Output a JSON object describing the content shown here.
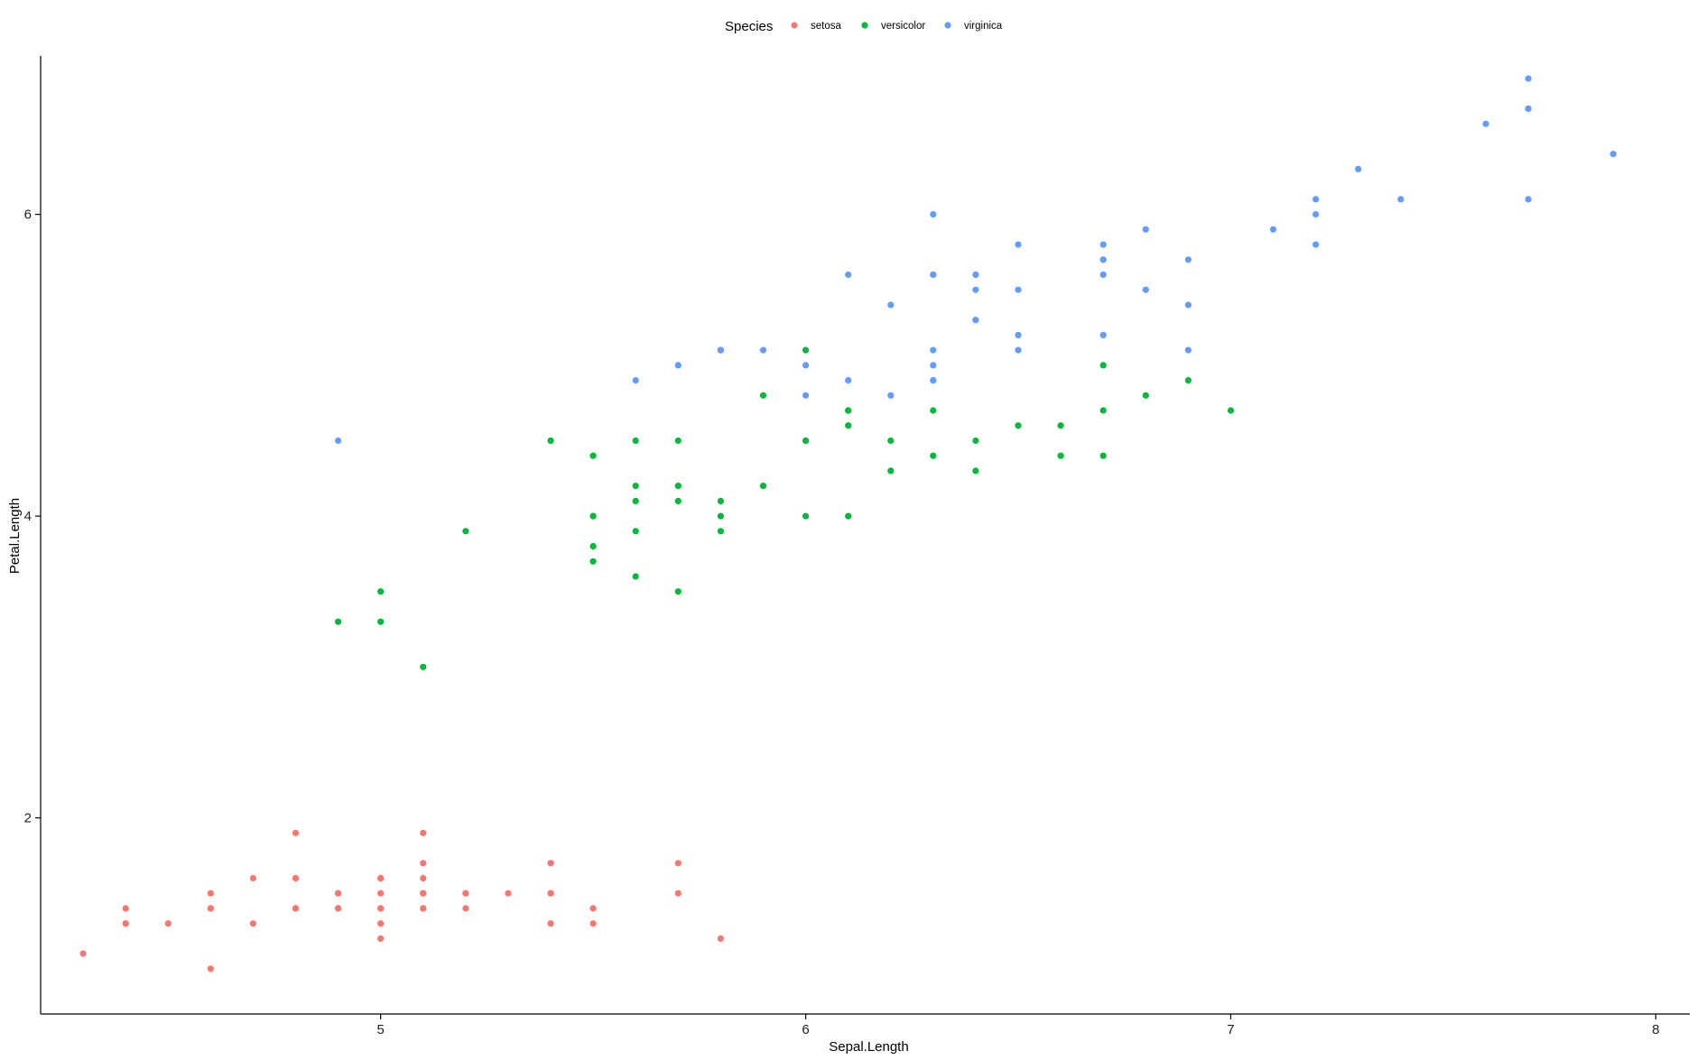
{
  "chart_data": {
    "type": "scatter",
    "xlabel": "Sepal.Length",
    "ylabel": "Petal.Length",
    "xlim": [
      4.2,
      8.08
    ],
    "ylim": [
      0.7,
      7.05
    ],
    "xticks": [
      5,
      6,
      7,
      8
    ],
    "yticks": [
      2,
      4,
      6
    ],
    "grid": false,
    "legend": {
      "title": "Species",
      "position": "top",
      "entries": [
        "setosa",
        "versicolor",
        "virginica"
      ]
    },
    "series": [
      {
        "name": "setosa",
        "color": "#F8766D",
        "points": [
          [
            5.1,
            1.4
          ],
          [
            4.9,
            1.4
          ],
          [
            4.7,
            1.3
          ],
          [
            4.6,
            1.5
          ],
          [
            5.0,
            1.4
          ],
          [
            5.4,
            1.7
          ],
          [
            4.6,
            1.4
          ],
          [
            5.0,
            1.5
          ],
          [
            4.4,
            1.4
          ],
          [
            4.9,
            1.5
          ],
          [
            5.4,
            1.5
          ],
          [
            4.8,
            1.6
          ],
          [
            4.8,
            1.4
          ],
          [
            4.3,
            1.1
          ],
          [
            5.8,
            1.2
          ],
          [
            5.7,
            1.5
          ],
          [
            5.4,
            1.3
          ],
          [
            5.1,
            1.4
          ],
          [
            5.7,
            1.7
          ],
          [
            5.1,
            1.5
          ],
          [
            5.4,
            1.7
          ],
          [
            5.1,
            1.5
          ],
          [
            4.6,
            1.0
          ],
          [
            5.1,
            1.7
          ],
          [
            4.8,
            1.9
          ],
          [
            5.0,
            1.6
          ],
          [
            5.0,
            1.6
          ],
          [
            5.2,
            1.5
          ],
          [
            5.2,
            1.4
          ],
          [
            4.7,
            1.6
          ],
          [
            4.8,
            1.6
          ],
          [
            5.4,
            1.5
          ],
          [
            5.2,
            1.5
          ],
          [
            5.5,
            1.4
          ],
          [
            4.9,
            1.5
          ],
          [
            5.0,
            1.2
          ],
          [
            5.5,
            1.3
          ],
          [
            4.9,
            1.4
          ],
          [
            4.4,
            1.3
          ],
          [
            5.1,
            1.5
          ],
          [
            5.0,
            1.3
          ],
          [
            4.5,
            1.3
          ],
          [
            4.4,
            1.3
          ],
          [
            5.0,
            1.6
          ],
          [
            5.1,
            1.9
          ],
          [
            4.8,
            1.4
          ],
          [
            5.1,
            1.6
          ],
          [
            4.6,
            1.4
          ],
          [
            5.3,
            1.5
          ],
          [
            5.0,
            1.4
          ]
        ]
      },
      {
        "name": "versicolor",
        "color": "#00BA38",
        "points": [
          [
            7.0,
            4.7
          ],
          [
            6.4,
            4.5
          ],
          [
            6.9,
            4.9
          ],
          [
            5.5,
            4.0
          ],
          [
            6.5,
            4.6
          ],
          [
            5.7,
            4.5
          ],
          [
            6.3,
            4.7
          ],
          [
            4.9,
            3.3
          ],
          [
            6.6,
            4.6
          ],
          [
            5.2,
            3.9
          ],
          [
            5.0,
            3.5
          ],
          [
            5.9,
            4.2
          ],
          [
            6.0,
            4.0
          ],
          [
            6.1,
            4.7
          ],
          [
            5.6,
            3.6
          ],
          [
            6.7,
            4.4
          ],
          [
            5.6,
            4.5
          ],
          [
            5.8,
            4.1
          ],
          [
            6.2,
            4.5
          ],
          [
            5.6,
            3.9
          ],
          [
            5.9,
            4.8
          ],
          [
            6.1,
            4.0
          ],
          [
            6.3,
            4.9
          ],
          [
            6.1,
            4.7
          ],
          [
            6.4,
            4.3
          ],
          [
            6.6,
            4.4
          ],
          [
            6.8,
            4.8
          ],
          [
            6.7,
            5.0
          ],
          [
            6.0,
            4.5
          ],
          [
            5.7,
            3.5
          ],
          [
            5.5,
            3.8
          ],
          [
            5.5,
            3.7
          ],
          [
            5.8,
            3.9
          ],
          [
            6.0,
            5.1
          ],
          [
            5.4,
            4.5
          ],
          [
            6.0,
            4.5
          ],
          [
            6.7,
            4.7
          ],
          [
            6.3,
            4.4
          ],
          [
            5.6,
            4.1
          ],
          [
            5.5,
            4.0
          ],
          [
            5.5,
            4.4
          ],
          [
            6.1,
            4.6
          ],
          [
            5.8,
            4.0
          ],
          [
            5.0,
            3.3
          ],
          [
            5.6,
            4.2
          ],
          [
            5.7,
            4.2
          ],
          [
            5.7,
            4.2
          ],
          [
            6.2,
            4.3
          ],
          [
            5.1,
            3.0
          ],
          [
            5.7,
            4.1
          ]
        ]
      },
      {
        "name": "virginica",
        "color": "#619CFF",
        "points": [
          [
            6.3,
            6.0
          ],
          [
            5.8,
            5.1
          ],
          [
            7.1,
            5.9
          ],
          [
            6.3,
            5.6
          ],
          [
            6.5,
            5.8
          ],
          [
            7.6,
            6.6
          ],
          [
            4.9,
            4.5
          ],
          [
            7.3,
            6.3
          ],
          [
            6.7,
            5.8
          ],
          [
            7.2,
            6.1
          ],
          [
            6.5,
            5.1
          ],
          [
            6.4,
            5.3
          ],
          [
            6.8,
            5.5
          ],
          [
            5.7,
            5.0
          ],
          [
            5.8,
            5.1
          ],
          [
            6.4,
            5.3
          ],
          [
            6.5,
            5.5
          ],
          [
            7.7,
            6.7
          ],
          [
            7.7,
            6.9
          ],
          [
            6.0,
            5.0
          ],
          [
            6.9,
            5.7
          ],
          [
            5.6,
            4.9
          ],
          [
            7.7,
            6.7
          ],
          [
            6.3,
            4.9
          ],
          [
            6.7,
            5.7
          ],
          [
            7.2,
            6.0
          ],
          [
            6.2,
            4.8
          ],
          [
            6.1,
            4.9
          ],
          [
            6.4,
            5.6
          ],
          [
            7.2,
            5.8
          ],
          [
            7.4,
            6.1
          ],
          [
            7.9,
            6.4
          ],
          [
            6.4,
            5.6
          ],
          [
            6.3,
            5.1
          ],
          [
            6.1,
            5.6
          ],
          [
            7.7,
            6.1
          ],
          [
            6.3,
            5.6
          ],
          [
            6.4,
            5.5
          ],
          [
            6.0,
            4.8
          ],
          [
            6.9,
            5.4
          ],
          [
            6.7,
            5.6
          ],
          [
            6.9,
            5.1
          ],
          [
            5.8,
            5.1
          ],
          [
            6.8,
            5.9
          ],
          [
            6.7,
            5.7
          ],
          [
            6.7,
            5.2
          ],
          [
            6.3,
            5.0
          ],
          [
            6.5,
            5.2
          ],
          [
            6.2,
            5.4
          ],
          [
            5.9,
            5.1
          ]
        ]
      }
    ]
  }
}
